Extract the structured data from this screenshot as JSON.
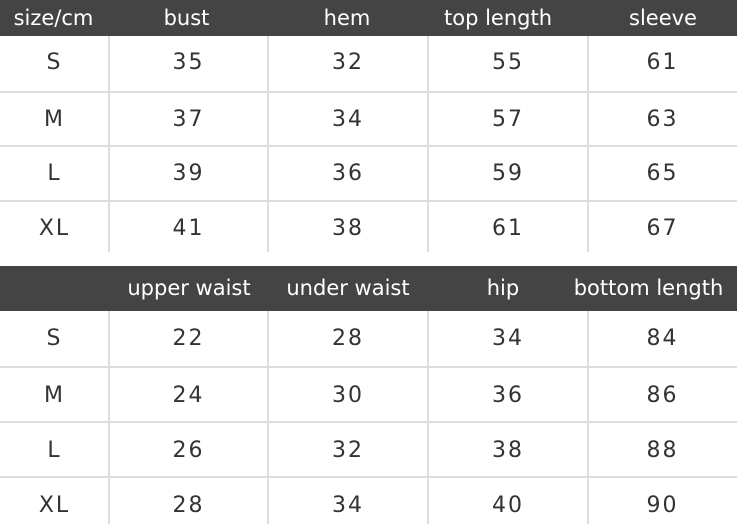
{
  "top_table": {
    "headers": [
      "size/cm",
      "bust",
      "hem",
      "top length",
      "sleeve"
    ],
    "rows": [
      [
        "S",
        "35",
        "32",
        "55",
        "61"
      ],
      [
        "M",
        "37",
        "34",
        "57",
        "63"
      ],
      [
        "L",
        "39",
        "36",
        "59",
        "65"
      ],
      [
        "XL",
        "41",
        "38",
        "61",
        "67"
      ]
    ]
  },
  "bottom_table": {
    "headers": [
      "",
      "upper waist",
      "under waist",
      "hip",
      "bottom length"
    ],
    "rows": [
      [
        "S",
        "22",
        "28",
        "34",
        "84"
      ],
      [
        "M",
        "24",
        "30",
        "36",
        "86"
      ],
      [
        "L",
        "26",
        "32",
        "38",
        "88"
      ],
      [
        "XL",
        "28",
        "34",
        "40",
        "90"
      ]
    ]
  },
  "colors": {
    "header_bg": "#444444",
    "header_text": "#ffffff",
    "grid": "#dddddd",
    "cell_text": "#333333"
  }
}
